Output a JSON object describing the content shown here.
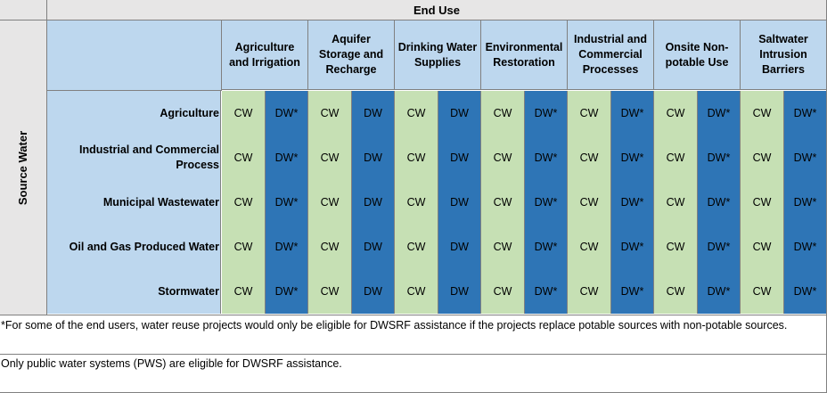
{
  "table": {
    "end_use_label": "End Use",
    "source_water_label": "Source Water",
    "columns": [
      "Agriculture and Irrigation",
      "Aquifer Storage and Recharge",
      "Drinking Water Supplies",
      "Environmental Restoration",
      "Industrial and Commercial Processes",
      "Onsite Non-potable Use",
      "Saltwater Intrusion Barriers"
    ],
    "rows": [
      {
        "label": "Agriculture",
        "cells": [
          "CW",
          "DW*",
          "CW",
          "DW",
          "CW",
          "DW",
          "CW",
          "DW*",
          "CW",
          "DW*",
          "CW",
          "DW*",
          "CW",
          "DW*"
        ]
      },
      {
        "label": "Industrial and Commercial Process",
        "cells": [
          "CW",
          "DW*",
          "CW",
          "DW",
          "CW",
          "DW",
          "CW",
          "DW*",
          "CW",
          "DW*",
          "CW",
          "DW*",
          "CW",
          "DW*"
        ]
      },
      {
        "label": "Municipal Wastewater",
        "cells": [
          "CW",
          "DW*",
          "CW",
          "DW",
          "CW",
          "DW",
          "CW",
          "DW*",
          "CW",
          "DW*",
          "CW",
          "DW*",
          "CW",
          "DW*"
        ]
      },
      {
        "label": "Oil and Gas Produced Water",
        "cells": [
          "CW",
          "DW*",
          "CW",
          "DW",
          "CW",
          "DW",
          "CW",
          "DW*",
          "CW",
          "DW*",
          "CW",
          "DW*",
          "CW",
          "DW*"
        ]
      },
      {
        "label": "Stormwater",
        "cells": [
          "CW",
          "DW*",
          "CW",
          "DW",
          "CW",
          "DW",
          "CW",
          "DW*",
          "CW",
          "DW*",
          "CW",
          "DW*",
          "CW",
          "DW*"
        ]
      }
    ],
    "colors": {
      "cw": "#c6e0b4",
      "dw": "#2e75b6",
      "header": "#bdd7ee",
      "gray": "#e7e6e6"
    }
  },
  "notes": {
    "footnote": "*For some of the end users, water reuse projects would only be eligible for DWSRF assistance if the projects replace potable sources with non-potable sources.",
    "pws_note": "Only public water systems (PWS) are eligible for DWSRF assistance."
  }
}
